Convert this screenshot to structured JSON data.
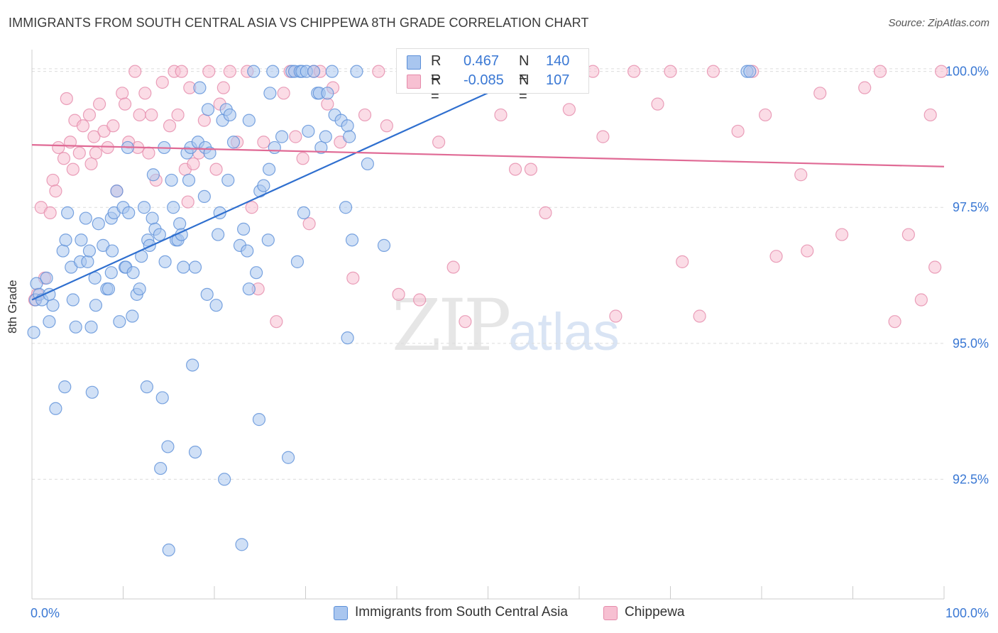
{
  "title": "IMMIGRANTS FROM SOUTH CENTRAL ASIA VS CHIPPEWA 8TH GRADE CORRELATION CHART",
  "source": "Source: ZipAtlas.com",
  "watermark": {
    "zip": "ZIP",
    "atlas": "atlas"
  },
  "legend_top": {
    "rows": [
      {
        "r_label": "R =",
        "r_value": "0.467",
        "n_label": "N =",
        "n_value": "140"
      },
      {
        "r_label": "R =",
        "r_value": "-0.085",
        "n_label": "N =",
        "n_value": "107"
      }
    ]
  },
  "legend_bottom": [
    "Immigrants from South Central Asia",
    "Chippewa"
  ],
  "colors": {
    "blue_fill": "#a9c6ef",
    "blue_stroke": "#5b8fd8",
    "blue_line": "#2f6fcf",
    "pink_fill": "#f7c0d2",
    "pink_stroke": "#e58aaa",
    "pink_line": "#e06a95",
    "tick_label": "#3a78d4",
    "grid": "#dcdcdc"
  },
  "chart_data": {
    "type": "scatter",
    "title": "IMMIGRANTS FROM SOUTH CENTRAL ASIA VS CHIPPEWA 8TH GRADE CORRELATION CHART",
    "xlabel": "",
    "ylabel": "8th Grade",
    "xlim": [
      0,
      100
    ],
    "ylim": [
      90.3,
      100.4
    ],
    "x_tick_labels": [
      "0.0%",
      "100.0%"
    ],
    "y_tick_labels": [
      "92.5%",
      "95.0%",
      "97.5%",
      "100.0%"
    ],
    "y_ticks": [
      92.5,
      95.0,
      97.5,
      100.0
    ],
    "x_ticks": [
      0,
      10,
      20,
      30,
      40,
      50,
      60,
      70,
      80,
      90,
      100
    ],
    "grid": true,
    "legend": "top-center",
    "series": [
      {
        "name": "Immigrants from South Central Asia",
        "r": 0.467,
        "n": 140,
        "trend": [
          [
            0,
            95.8
          ],
          [
            56.5,
            100.1
          ]
        ],
        "points": [
          [
            0.2,
            95.2
          ],
          [
            0.4,
            95.8
          ],
          [
            0.5,
            96.1
          ],
          [
            0.8,
            95.9
          ],
          [
            1.1,
            95.8
          ],
          [
            1.6,
            96.2
          ],
          [
            1.9,
            95.4
          ],
          [
            2.3,
            95.7
          ],
          [
            1.9,
            95.9
          ],
          [
            2.6,
            93.8
          ],
          [
            3.4,
            96.7
          ],
          [
            3.6,
            94.2
          ],
          [
            3.7,
            96.9
          ],
          [
            3.9,
            97.4
          ],
          [
            4.3,
            96.4
          ],
          [
            4.5,
            95.8
          ],
          [
            4.8,
            95.3
          ],
          [
            5.3,
            96.5
          ],
          [
            5.4,
            96.9
          ],
          [
            5.9,
            97.3
          ],
          [
            6.1,
            96.5
          ],
          [
            6.3,
            96.7
          ],
          [
            6.5,
            95.3
          ],
          [
            6.6,
            94.1
          ],
          [
            6.9,
            96.2
          ],
          [
            7.0,
            95.7
          ],
          [
            7.3,
            97.2
          ],
          [
            7.8,
            96.8
          ],
          [
            8.2,
            96.0
          ],
          [
            8.4,
            96.0
          ],
          [
            8.7,
            97.3
          ],
          [
            8.7,
            96.3
          ],
          [
            8.8,
            96.7
          ],
          [
            9.0,
            97.4
          ],
          [
            9.3,
            97.8
          ],
          [
            9.6,
            95.4
          ],
          [
            10.0,
            97.5
          ],
          [
            10.2,
            96.4
          ],
          [
            10.3,
            96.4
          ],
          [
            10.5,
            98.6
          ],
          [
            10.6,
            97.4
          ],
          [
            11.0,
            95.5
          ],
          [
            11.1,
            96.3
          ],
          [
            11.5,
            95.9
          ],
          [
            11.8,
            96.0
          ],
          [
            12.0,
            96.6
          ],
          [
            12.3,
            97.5
          ],
          [
            12.6,
            94.2
          ],
          [
            12.7,
            96.9
          ],
          [
            12.9,
            96.8
          ],
          [
            13.2,
            97.3
          ],
          [
            13.3,
            98.1
          ],
          [
            13.5,
            97.1
          ],
          [
            14.0,
            97.0
          ],
          [
            14.1,
            92.7
          ],
          [
            14.3,
            94.0
          ],
          [
            14.5,
            98.6
          ],
          [
            14.6,
            96.5
          ],
          [
            14.9,
            93.1
          ],
          [
            15.0,
            91.2
          ],
          [
            15.3,
            98.0
          ],
          [
            15.5,
            97.5
          ],
          [
            15.8,
            96.9
          ],
          [
            16.0,
            96.9
          ],
          [
            16.2,
            97.2
          ],
          [
            16.4,
            97.0
          ],
          [
            16.6,
            96.4
          ],
          [
            17.0,
            98.5
          ],
          [
            17.2,
            98.0
          ],
          [
            17.4,
            98.6
          ],
          [
            17.6,
            94.6
          ],
          [
            17.9,
            93.0
          ],
          [
            17.9,
            96.4
          ],
          [
            18.2,
            98.7
          ],
          [
            18.4,
            99.7
          ],
          [
            18.9,
            97.7
          ],
          [
            19.0,
            98.6
          ],
          [
            19.2,
            95.9
          ],
          [
            19.3,
            99.3
          ],
          [
            19.5,
            98.5
          ],
          [
            20.2,
            95.7
          ],
          [
            20.4,
            97.0
          ],
          [
            20.6,
            97.4
          ],
          [
            20.9,
            99.1
          ],
          [
            21.1,
            92.5
          ],
          [
            21.3,
            99.3
          ],
          [
            21.5,
            98.0
          ],
          [
            21.7,
            99.2
          ],
          [
            22.1,
            98.7
          ],
          [
            22.8,
            96.8
          ],
          [
            23.0,
            91.3
          ],
          [
            23.2,
            97.1
          ],
          [
            23.6,
            96.7
          ],
          [
            23.8,
            99.1
          ],
          [
            23.8,
            96.0
          ],
          [
            24.3,
            100.0
          ],
          [
            24.6,
            96.3
          ],
          [
            24.9,
            93.6
          ],
          [
            25.0,
            97.8
          ],
          [
            25.4,
            97.9
          ],
          [
            25.9,
            96.9
          ],
          [
            26.0,
            98.2
          ],
          [
            26.1,
            99.6
          ],
          [
            26.4,
            100.0
          ],
          [
            26.6,
            98.6
          ],
          [
            27.4,
            98.8
          ],
          [
            28.1,
            92.9
          ],
          [
            28.5,
            100.0
          ],
          [
            28.8,
            100.0
          ],
          [
            29.1,
            96.5
          ],
          [
            29.4,
            100.0
          ],
          [
            29.6,
            100.0
          ],
          [
            29.8,
            97.4
          ],
          [
            30.1,
            100.0
          ],
          [
            30.3,
            98.9
          ],
          [
            30.9,
            100.0
          ],
          [
            31.3,
            99.6
          ],
          [
            31.5,
            99.6
          ],
          [
            31.7,
            98.6
          ],
          [
            32.2,
            98.8
          ],
          [
            32.4,
            99.6
          ],
          [
            32.9,
            100.0
          ],
          [
            33.2,
            99.2
          ],
          [
            33.9,
            99.1
          ],
          [
            34.4,
            97.5
          ],
          [
            34.6,
            99.0
          ],
          [
            34.6,
            95.1
          ],
          [
            34.8,
            98.8
          ],
          [
            35.1,
            96.9
          ],
          [
            35.6,
            100.0
          ],
          [
            36.8,
            98.3
          ],
          [
            38.6,
            96.8
          ],
          [
            40.9,
            100.0
          ],
          [
            43.9,
            100.0
          ],
          [
            47.3,
            100.0
          ],
          [
            52.3,
            100.0
          ],
          [
            54.1,
            100.0
          ],
          [
            56.6,
            100.0
          ],
          [
            78.4,
            100.0
          ],
          [
            78.7,
            100.0
          ]
        ]
      },
      {
        "name": "Chippewa",
        "r": -0.085,
        "n": 107,
        "trend": [
          [
            0,
            98.65
          ],
          [
            100,
            98.25
          ]
        ],
        "points": [
          [
            0.3,
            95.8
          ],
          [
            0.6,
            95.9
          ],
          [
            1.0,
            97.5
          ],
          [
            1.4,
            96.2
          ],
          [
            2.0,
            97.4
          ],
          [
            2.3,
            98.0
          ],
          [
            2.6,
            97.8
          ],
          [
            2.9,
            98.6
          ],
          [
            3.5,
            98.4
          ],
          [
            3.8,
            99.5
          ],
          [
            4.2,
            98.7
          ],
          [
            4.5,
            98.2
          ],
          [
            4.7,
            99.1
          ],
          [
            5.2,
            98.5
          ],
          [
            5.6,
            99.0
          ],
          [
            6.3,
            99.2
          ],
          [
            6.5,
            98.3
          ],
          [
            6.8,
            98.8
          ],
          [
            7.0,
            98.5
          ],
          [
            7.4,
            99.4
          ],
          [
            7.9,
            98.9
          ],
          [
            8.3,
            98.6
          ],
          [
            8.9,
            99.0
          ],
          [
            9.3,
            97.8
          ],
          [
            9.9,
            99.6
          ],
          [
            10.2,
            99.4
          ],
          [
            10.6,
            98.7
          ],
          [
            11.3,
            100.0
          ],
          [
            11.6,
            98.6
          ],
          [
            11.8,
            99.2
          ],
          [
            12.4,
            99.6
          ],
          [
            12.8,
            98.5
          ],
          [
            13.1,
            99.2
          ],
          [
            13.6,
            98.0
          ],
          [
            14.3,
            99.8
          ],
          [
            15.1,
            99.0
          ],
          [
            15.6,
            100.0
          ],
          [
            16.0,
            99.2
          ],
          [
            16.4,
            100.0
          ],
          [
            16.8,
            98.2
          ],
          [
            17.1,
            97.6
          ],
          [
            17.3,
            99.7
          ],
          [
            17.7,
            98.3
          ],
          [
            18.3,
            98.5
          ],
          [
            18.9,
            99.1
          ],
          [
            19.4,
            100.0
          ],
          [
            20.2,
            98.2
          ],
          [
            20.6,
            99.4
          ],
          [
            21.0,
            99.7
          ],
          [
            21.7,
            100.0
          ],
          [
            22.5,
            98.7
          ],
          [
            23.6,
            100.0
          ],
          [
            24.1,
            97.5
          ],
          [
            24.8,
            96.0
          ],
          [
            25.4,
            98.7
          ],
          [
            26.8,
            95.4
          ],
          [
            27.6,
            99.6
          ],
          [
            28.3,
            100.0
          ],
          [
            28.9,
            98.8
          ],
          [
            29.7,
            98.4
          ],
          [
            30.4,
            97.2
          ],
          [
            30.9,
            100.0
          ],
          [
            31.6,
            100.0
          ],
          [
            32.4,
            99.4
          ],
          [
            33.0,
            99.7
          ],
          [
            33.8,
            98.7
          ],
          [
            35.2,
            96.2
          ],
          [
            36.5,
            99.2
          ],
          [
            38.0,
            100.0
          ],
          [
            38.9,
            99.0
          ],
          [
            40.2,
            95.9
          ],
          [
            42.5,
            95.8
          ],
          [
            44.0,
            100.0
          ],
          [
            44.6,
            98.7
          ],
          [
            46.2,
            96.4
          ],
          [
            47.5,
            95.4
          ],
          [
            49.2,
            100.0
          ],
          [
            51.4,
            99.2
          ],
          [
            53.0,
            98.2
          ],
          [
            54.7,
            98.2
          ],
          [
            56.3,
            97.4
          ],
          [
            58.9,
            99.3
          ],
          [
            61.5,
            100.0
          ],
          [
            62.6,
            98.8
          ],
          [
            64.0,
            95.5
          ],
          [
            66.0,
            100.0
          ],
          [
            68.6,
            99.4
          ],
          [
            70.0,
            100.0
          ],
          [
            71.3,
            96.5
          ],
          [
            73.2,
            95.5
          ],
          [
            74.7,
            100.0
          ],
          [
            77.4,
            98.9
          ],
          [
            79.0,
            100.0
          ],
          [
            80.4,
            99.2
          ],
          [
            81.6,
            96.6
          ],
          [
            84.3,
            98.1
          ],
          [
            85.0,
            96.7
          ],
          [
            86.4,
            99.6
          ],
          [
            88.8,
            97.0
          ],
          [
            91.3,
            99.7
          ],
          [
            93.0,
            100.0
          ],
          [
            94.6,
            95.4
          ],
          [
            96.1,
            97.0
          ],
          [
            97.5,
            95.8
          ],
          [
            98.5,
            99.2
          ],
          [
            99.0,
            96.4
          ],
          [
            99.7,
            100.0
          ]
        ]
      }
    ]
  }
}
